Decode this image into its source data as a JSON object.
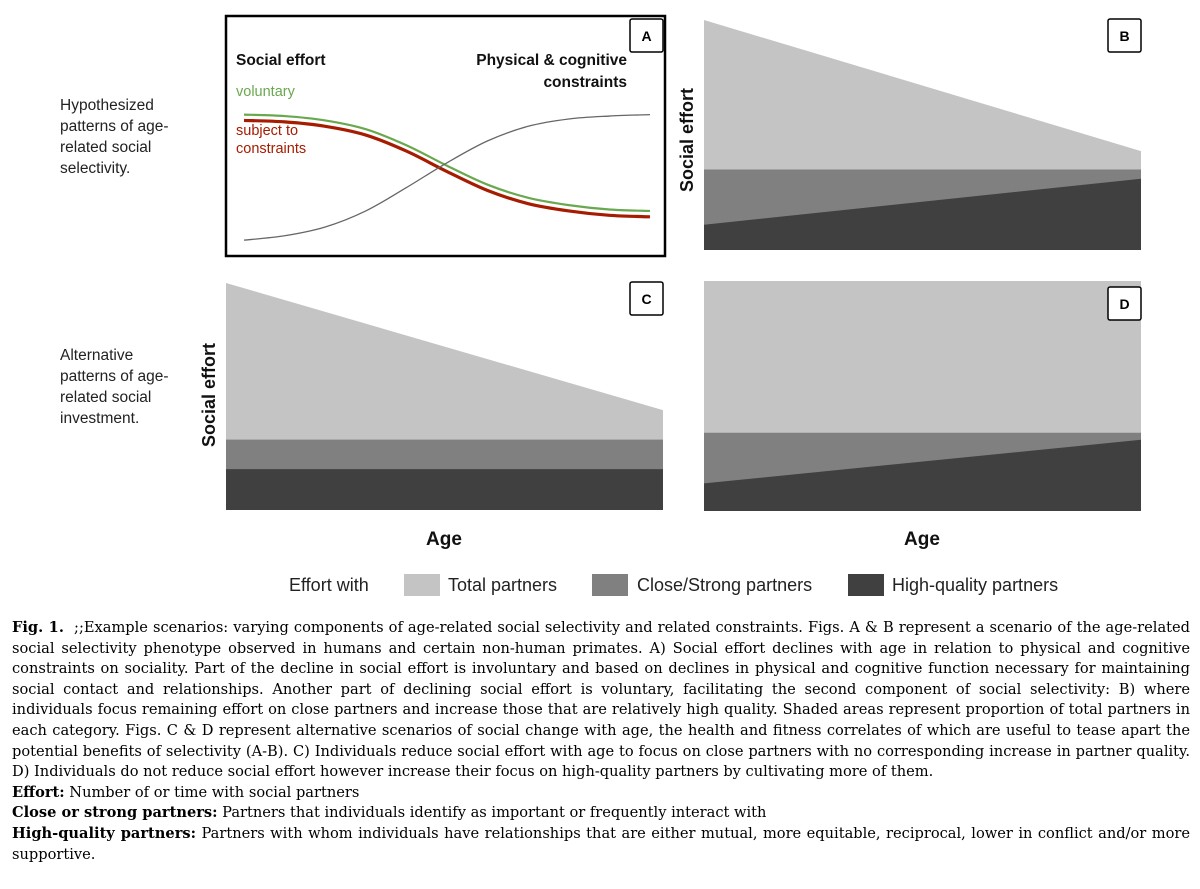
{
  "row_labels": {
    "top": "Hypothesized patterns of age-related social selectivity.",
    "bottom": "Alternative patterns of age-related social investment."
  },
  "panel_a": {
    "letter": "A",
    "left_heading": "Social effort",
    "right_heading_line1": "Physical & cognitive",
    "right_heading_line2": "constraints",
    "voluntary_label": "voluntary",
    "constrained_label_line1": "subject to",
    "constrained_label_line2": "constraints"
  },
  "panel_letters": {
    "b": "B",
    "c": "C",
    "d": "D"
  },
  "y_axis_label": "Social effort",
  "x_axis_label": "Age",
  "legend": {
    "title": "Effort with",
    "items": [
      "Total partners",
      "Close/Strong partners",
      "High-quality partners"
    ]
  },
  "colors": {
    "total": "#c4c4c4",
    "close": "#808080",
    "quality": "#404040",
    "voluntary": "#6aa84f",
    "constrained": "#a61c00",
    "constraints_curve": "#666666"
  },
  "chart_data": [
    {
      "panel": "A",
      "type": "line",
      "title": "",
      "xlabel": "Age",
      "ylabel": "",
      "x": [
        0,
        0.1,
        0.2,
        0.3,
        0.4,
        0.5,
        0.6,
        0.7,
        0.8,
        0.9,
        1.0
      ],
      "series": [
        {
          "name": "voluntary",
          "values": [
            0.9,
            0.89,
            0.86,
            0.8,
            0.69,
            0.55,
            0.42,
            0.33,
            0.28,
            0.25,
            0.24
          ]
        },
        {
          "name": "subject to constraints",
          "values": [
            0.86,
            0.85,
            0.82,
            0.76,
            0.65,
            0.51,
            0.38,
            0.29,
            0.24,
            0.21,
            0.2
          ]
        },
        {
          "name": "Physical & cognitive constraints",
          "values": [
            0.04,
            0.07,
            0.13,
            0.24,
            0.4,
            0.57,
            0.72,
            0.82,
            0.87,
            0.89,
            0.9
          ]
        }
      ],
      "ylim": [
        0,
        1
      ]
    },
    {
      "panel": "B",
      "type": "area",
      "xlabel": "Age",
      "ylabel": "Social effort",
      "x": [
        0,
        1
      ],
      "series": [
        {
          "name": "Total partners",
          "values": [
            1.0,
            0.43
          ]
        },
        {
          "name": "Close/Strong partners",
          "values": [
            0.35,
            0.35
          ]
        },
        {
          "name": "High-quality partners",
          "values": [
            0.11,
            0.31
          ]
        }
      ],
      "ylim": [
        0,
        1
      ]
    },
    {
      "panel": "C",
      "type": "area",
      "xlabel": "Age",
      "ylabel": "Social effort",
      "x": [
        0,
        1
      ],
      "series": [
        {
          "name": "Total partners",
          "values": [
            1.0,
            0.44
          ]
        },
        {
          "name": "Close/Strong partners",
          "values": [
            0.31,
            0.31
          ]
        },
        {
          "name": "High-quality partners",
          "values": [
            0.18,
            0.18
          ]
        }
      ],
      "ylim": [
        0,
        1
      ]
    },
    {
      "panel": "D",
      "type": "area",
      "xlabel": "Age",
      "ylabel": "Social effort",
      "x": [
        0,
        1
      ],
      "series": [
        {
          "name": "Total partners",
          "values": [
            1.0,
            1.0
          ]
        },
        {
          "name": "Close/Strong partners",
          "values": [
            0.34,
            0.34
          ]
        },
        {
          "name": "High-quality partners",
          "values": [
            0.12,
            0.31
          ]
        }
      ],
      "ylim": [
        0,
        1
      ]
    }
  ],
  "caption": {
    "fig_label": "Fig. 1.",
    "fig_text": ";;Example scenarios: varying components of age-related social selectivity and related constraints. Figs. A & B represent a scenario of the age-related social selectivity phenotype observed in humans and certain non-human primates. A) Social effort declines with age in relation to physical and cognitive constraints on sociality. Part of the decline in social effort is involuntary and based on declines in physical and cognitive function necessary for maintaining social contact and relationships. Another part of declining social effort is voluntary, facilitating the second component of social selectivity: B) where individuals focus remaining effort on close partners and increase those that are relatively high quality. Shaded areas represent proportion of total partners in each category. Figs. C & D represent alternative scenarios of social change with age, the health and fitness correlates of which are useful to tease apart the potential benefits of selectivity (A-B). C) Individuals reduce social effort with age to focus on close partners with no corresponding increase in partner quality. D) Individuals do not reduce social effort however increase their focus on high-quality partners by cultivating more of them.",
    "definitions": [
      {
        "term": "Effort:",
        "text": "Number of or time with social partners"
      },
      {
        "term": "Close or strong partners:",
        "text": "Partners that individuals identify as important or frequently interact with"
      },
      {
        "term": "High-quality partners:",
        "text": "Partners with whom individuals have relationships that are either mutual, more equitable, reciprocal, lower in conflict and/or more supportive."
      }
    ]
  }
}
